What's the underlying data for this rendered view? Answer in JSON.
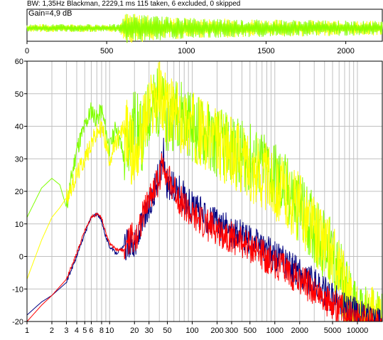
{
  "header": {
    "info": "BW: 1,35Hz Blackman, 2229,1 ms 115 taken, 6 excluded, 0 skipped",
    "gain": "Gain=4,9 dB"
  },
  "chart_data": [
    {
      "type": "line",
      "title": "",
      "xlabel": "",
      "ylabel": "",
      "xlim": [
        0,
        2229.1
      ],
      "x_ticks": [
        0,
        500,
        1000,
        1500,
        2000
      ],
      "x_tick_labels": [
        "0",
        "500",
        "1000",
        "1500",
        "2000"
      ],
      "colors": {
        "signal_a": "#ffff00",
        "signal_b": "#80ff00"
      },
      "series": [
        {
          "values_envelope": [
            [
              0,
              0.25
            ],
            [
              580,
              0.25
            ],
            [
              620,
              0.95
            ],
            [
              850,
              0.75
            ],
            [
              1000,
              0.65
            ],
            [
              1500,
              0.55
            ],
            [
              2229,
              0.45
            ]
          ]
        }
      ]
    },
    {
      "type": "line",
      "title": "",
      "xlabel": "",
      "ylabel": "",
      "x_scale": "log",
      "xlim": [
        1,
        20000
      ],
      "ylim": [
        -20,
        60
      ],
      "x_tick_labels": [
        "1",
        "2",
        "3",
        "4",
        "5",
        "6",
        "8",
        "10",
        "20",
        "30",
        "50",
        "100",
        "200",
        "300",
        "500",
        "1000",
        "2000",
        "5000",
        "10000"
      ],
      "x_ticks": [
        1,
        2,
        3,
        4,
        5,
        6,
        8,
        10,
        20,
        30,
        50,
        100,
        200,
        300,
        500,
        1000,
        2000,
        5000,
        10000
      ],
      "y_ticks": [
        -20,
        -10,
        0,
        10,
        20,
        30,
        40,
        50,
        60
      ],
      "y_tick_labels": [
        "-20",
        "-10",
        "0",
        "10",
        "20",
        "30",
        "40",
        "50",
        "60"
      ],
      "grid": true,
      "legend": "none",
      "series": [
        {
          "color": "#80ff00",
          "x": [
            1,
            1.5,
            2,
            2.5,
            3,
            3.5,
            4,
            5,
            6,
            7,
            8,
            10,
            12,
            15,
            20,
            25,
            30,
            40,
            50,
            70,
            100,
            200,
            500,
            1000,
            2000,
            5000,
            10000,
            20000
          ],
          "y": [
            12,
            21,
            24,
            22,
            15,
            25,
            33,
            40,
            45,
            42,
            45,
            33,
            40,
            30,
            42,
            36,
            45,
            48,
            42,
            45,
            40,
            35,
            30,
            25,
            15,
            0,
            -20,
            -20
          ]
        },
        {
          "color": "#ffff00",
          "x": [
            1,
            1.5,
            2,
            2.5,
            3,
            4,
            5,
            6,
            8,
            10,
            15,
            20,
            30,
            40,
            50,
            70,
            100,
            200,
            500,
            1000,
            2000,
            5000,
            10000,
            20000
          ],
          "y": [
            -7,
            5,
            12,
            15,
            18,
            25,
            30,
            35,
            40,
            30,
            40,
            30,
            45,
            50,
            45,
            42,
            40,
            35,
            28,
            22,
            15,
            0,
            -20,
            -20
          ]
        },
        {
          "color": "#000080",
          "x": [
            1,
            1.5,
            2,
            3,
            4,
            5,
            6,
            7,
            8,
            9,
            10,
            12,
            15,
            18,
            20,
            25,
            30,
            40,
            45,
            50,
            70,
            100,
            200,
            500,
            1000,
            2000,
            5000,
            10000,
            15000
          ],
          "y": [
            -18,
            -14,
            -12,
            -8,
            0,
            7,
            12,
            13,
            11,
            6,
            3,
            1,
            3,
            5,
            3,
            10,
            15,
            25,
            32,
            22,
            20,
            15,
            10,
            5,
            0,
            -5,
            -13,
            -18,
            -20
          ]
        },
        {
          "color": "#ff0000",
          "x": [
            1,
            1.5,
            2,
            3,
            4,
            5,
            6,
            7,
            8,
            9,
            10,
            12,
            15,
            18,
            20,
            25,
            30,
            40,
            45,
            50,
            70,
            100,
            200,
            500,
            1000,
            2000,
            5000,
            10000,
            15000
          ],
          "y": [
            -20,
            -15,
            -12,
            -7,
            1,
            8,
            12,
            13,
            12,
            7,
            4,
            2,
            2,
            6,
            5,
            12,
            18,
            24,
            30,
            24,
            18,
            12,
            8,
            3,
            -2,
            -7,
            -15,
            -19,
            -20
          ]
        }
      ]
    }
  ]
}
